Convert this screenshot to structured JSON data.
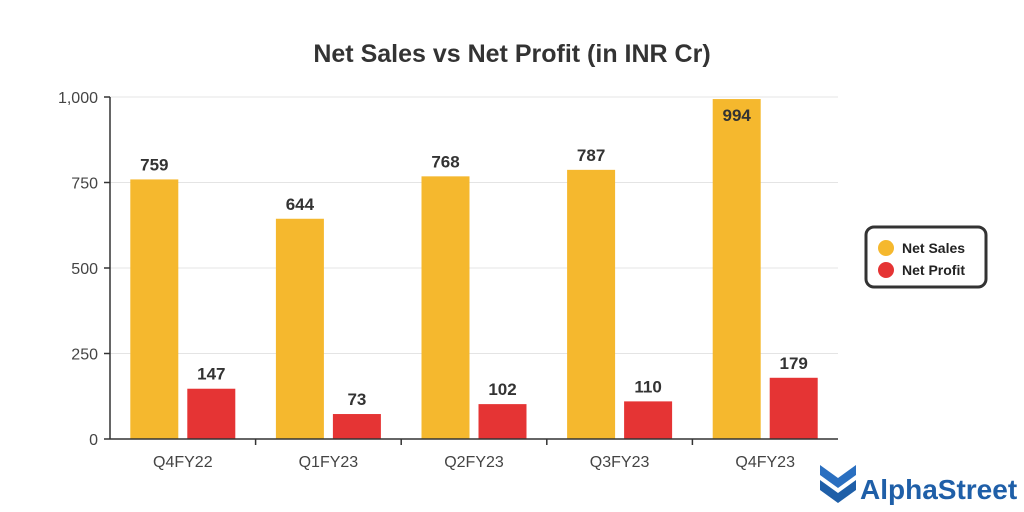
{
  "chart_data": {
    "type": "bar",
    "title": "Net Sales vs Net Profit (in INR Cr)",
    "categories": [
      "Q4FY22",
      "Q1FY23",
      "Q2FY23",
      "Q3FY23",
      "Q4FY23"
    ],
    "series": [
      {
        "name": "Net Sales",
        "values": [
          759,
          644,
          768,
          787,
          994
        ],
        "color": "#f5b82e"
      },
      {
        "name": "Net Profit",
        "values": [
          147,
          73,
          102,
          110,
          179
        ],
        "color": "#e53434"
      }
    ],
    "yticks": [
      "0",
      "250",
      "500",
      "750",
      "1,000"
    ],
    "ytick_values": [
      0,
      250,
      500,
      750,
      1000
    ],
    "ylim": [
      0,
      1000
    ],
    "grid": true,
    "legend_position": "right"
  },
  "brand": {
    "name": "AlphaStreet",
    "color": "#1f5fa8",
    "icon": "alphastreet-logo-icon"
  }
}
